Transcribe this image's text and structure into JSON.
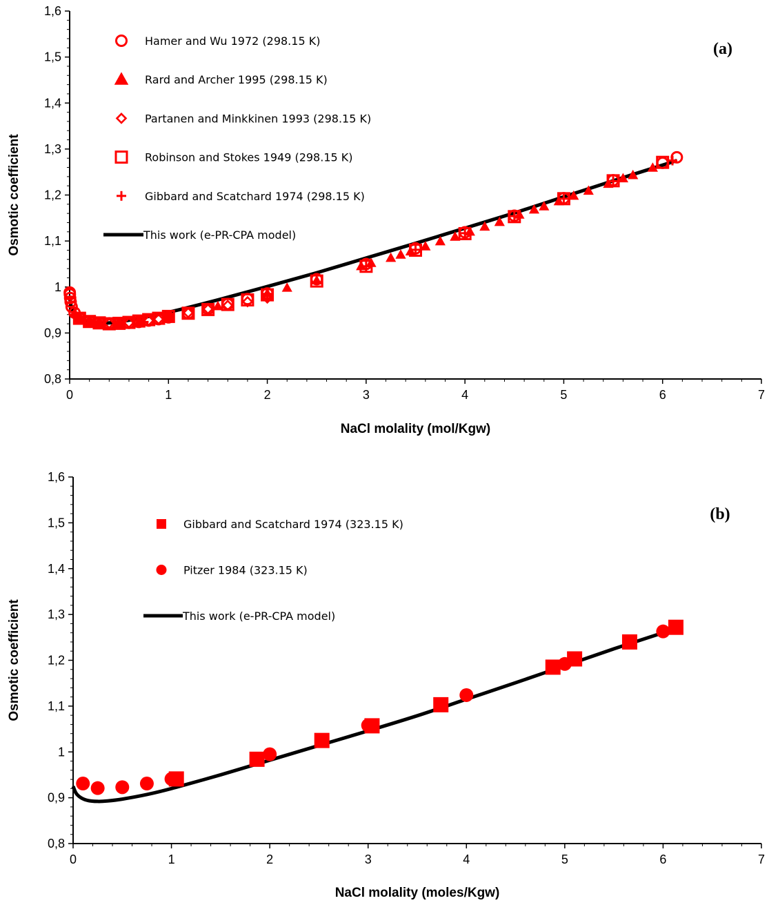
{
  "chart_data": [
    {
      "type": "scatter",
      "panel_label": "(a)",
      "xlabel": "NaCl molality (mol/Kgw)",
      "ylabel": "Osmotic coefficient",
      "xlim": [
        0,
        7
      ],
      "ylim": [
        0.8,
        1.6
      ],
      "xticks": [
        "0",
        "1",
        "2",
        "3",
        "4",
        "5",
        "6",
        "7"
      ],
      "yticks": [
        "0,8",
        "0,9",
        "1",
        "1,1",
        "1,2",
        "1,3",
        "1,4",
        "1,5",
        "1,6"
      ],
      "legend_position": "top-left",
      "series": [
        {
          "name": "Hamer and Wu 1972 (298.15 K)",
          "marker": "open-circle",
          "color": "#ff0000",
          "x": [
            0.001,
            0.002,
            0.005,
            0.01,
            0.02,
            0.05,
            0.1,
            0.2,
            0.3,
            0.4,
            0.5,
            0.6,
            0.7,
            0.8,
            0.9,
            1.0,
            1.2,
            1.4,
            1.6,
            1.8,
            2.0,
            2.5,
            3.0,
            3.5,
            4.0,
            4.5,
            5.0,
            5.5,
            6.0,
            6.144
          ],
          "y": [
            0.988,
            0.984,
            0.976,
            0.968,
            0.957,
            0.944,
            0.932,
            0.925,
            0.922,
            0.921,
            0.921,
            0.922,
            0.924,
            0.927,
            0.93,
            0.934,
            0.943,
            0.952,
            0.963,
            0.974,
            0.986,
            1.017,
            1.05,
            1.084,
            1.119,
            1.155,
            1.193,
            1.232,
            1.27,
            1.282
          ]
        },
        {
          "name": "Rard and Archer 1995 (298.15 K)",
          "marker": "filled-triangle",
          "color": "#ff0000",
          "x": [
            0.05,
            0.1,
            0.2,
            0.3,
            0.5,
            0.7,
            1.0,
            1.5,
            2.0,
            2.2,
            2.5,
            2.95,
            3.05,
            3.25,
            3.35,
            3.45,
            3.6,
            3.75,
            3.9,
            4.05,
            4.2,
            4.35,
            4.55,
            4.7,
            4.8,
            4.95,
            5.1,
            5.25,
            5.45,
            5.6,
            5.7,
            5.9
          ],
          "y": [
            0.944,
            0.932,
            0.925,
            0.922,
            0.921,
            0.924,
            0.934,
            0.958,
            0.986,
            0.998,
            1.014,
            1.045,
            1.052,
            1.063,
            1.07,
            1.077,
            1.088,
            1.099,
            1.109,
            1.12,
            1.131,
            1.141,
            1.157,
            1.168,
            1.175,
            1.186,
            1.198,
            1.209,
            1.224,
            1.236,
            1.243,
            1.259
          ]
        },
        {
          "name": "Partanen and Minkkinen 1993 (298.15 K)",
          "marker": "open-diamond",
          "color": "#ff0000",
          "x": [
            0.1,
            0.2,
            0.3,
            0.4,
            0.5,
            0.6,
            0.7,
            0.8,
            0.9,
            1.0,
            1.2,
            1.4,
            1.6,
            1.8,
            2.0
          ],
          "y": [
            0.932,
            0.925,
            0.922,
            0.921,
            0.921,
            0.922,
            0.924,
            0.927,
            0.93,
            0.935,
            0.944,
            0.952,
            0.96,
            0.968,
            0.976
          ]
        },
        {
          "name": "Robinson and Stokes 1949 (298.15 K)",
          "marker": "open-square",
          "color": "#ff0000",
          "x": [
            0.1,
            0.2,
            0.3,
            0.4,
            0.5,
            0.6,
            0.7,
            0.8,
            0.9,
            1.0,
            1.2,
            1.4,
            1.6,
            1.8,
            2.0,
            2.5,
            3.0,
            3.5,
            4.0,
            4.5,
            5.0,
            5.5,
            6.0
          ],
          "y": [
            0.932,
            0.925,
            0.922,
            0.92,
            0.921,
            0.923,
            0.926,
            0.929,
            0.932,
            0.936,
            0.943,
            0.951,
            0.962,
            0.972,
            0.983,
            1.013,
            1.045,
            1.08,
            1.116,
            1.153,
            1.192,
            1.231,
            1.271
          ]
        },
        {
          "name": "Gibbard and Scatchard 1974 (298.15 K)",
          "marker": "plus",
          "color": "#ff0000",
          "x": [
            0.1,
            0.25,
            0.5,
            0.75,
            1.0,
            2.0,
            3.0,
            3.5,
            4.0,
            4.5,
            5.0,
            5.5,
            6.1
          ],
          "y": [
            0.932,
            0.924,
            0.921,
            0.924,
            0.936,
            0.985,
            1.045,
            1.081,
            1.117,
            1.154,
            1.192,
            1.23,
            1.275
          ]
        },
        {
          "name": "This work (e-PR-CPA model)",
          "marker": "line",
          "color": "#000000",
          "x": [
            0.0,
            0.02,
            0.05,
            0.1,
            0.2,
            0.3,
            0.4,
            0.5,
            0.7,
            1.0,
            1.5,
            2.0,
            2.5,
            3.0,
            3.5,
            4.0,
            4.5,
            5.0,
            5.5,
            6.0,
            6.144
          ],
          "y": [
            0.975,
            0.955,
            0.942,
            0.932,
            0.924,
            0.921,
            0.922,
            0.924,
            0.932,
            0.945,
            0.972,
            1.001,
            1.031,
            1.063,
            1.095,
            1.128,
            1.161,
            1.196,
            1.231,
            1.265,
            1.275
          ]
        }
      ]
    },
    {
      "type": "scatter",
      "panel_label": "(b)",
      "xlabel": "NaCl molality (moles/Kgw)",
      "ylabel": "Osmotic coefficient",
      "xlim": [
        0,
        7
      ],
      "ylim": [
        0.8,
        1.6
      ],
      "xticks": [
        "0",
        "1",
        "2",
        "3",
        "4",
        "5",
        "6",
        "7"
      ],
      "yticks": [
        "0,8",
        "0,9",
        "1",
        "1,1",
        "1,2",
        "1,3",
        "1,4",
        "1,5",
        "1,6"
      ],
      "legend_position": "top-left",
      "series": [
        {
          "name": "Gibbard and Scatchard 1974 (323.15 K)",
          "marker": "filled-square",
          "color": "#ff0000",
          "x": [
            1.05,
            1.87,
            2.53,
            3.04,
            3.74,
            4.88,
            5.1,
            5.66,
            6.13
          ],
          "y": [
            0.941,
            0.984,
            1.025,
            1.057,
            1.103,
            1.185,
            1.203,
            1.24,
            1.272
          ]
        },
        {
          "name": "Pitzer 1984 (323.15 K)",
          "marker": "filled-circle",
          "color": "#ff0000",
          "x": [
            0.1,
            0.25,
            0.5,
            0.75,
            1.0,
            2.0,
            3.0,
            4.0,
            5.0,
            6.0
          ],
          "y": [
            0.931,
            0.921,
            0.923,
            0.931,
            0.941,
            0.995,
            1.058,
            1.124,
            1.192,
            1.263
          ]
        },
        {
          "name": "This work (e-PR-CPA model)",
          "marker": "line",
          "color": "#000000",
          "x": [
            0.0,
            0.03,
            0.08,
            0.15,
            0.25,
            0.35,
            0.5,
            0.75,
            1.0,
            1.5,
            2.0,
            2.5,
            3.0,
            3.5,
            4.0,
            4.5,
            5.0,
            5.5,
            6.0,
            6.13
          ],
          "y": [
            0.925,
            0.91,
            0.9,
            0.894,
            0.892,
            0.893,
            0.897,
            0.907,
            0.92,
            0.95,
            0.982,
            1.014,
            1.046,
            1.079,
            1.115,
            1.151,
            1.188,
            1.225,
            1.26,
            1.268
          ]
        }
      ]
    }
  ]
}
